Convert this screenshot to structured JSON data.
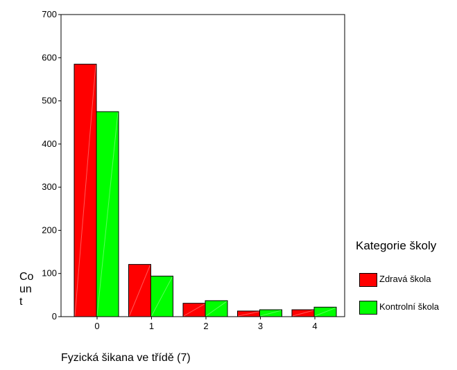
{
  "chart_data": {
    "type": "bar",
    "xlabel": "Fyzická šikana ve třídě (7)",
    "ylabel_lines": [
      "Co",
      "un",
      "t"
    ],
    "categories": [
      "0",
      "1",
      "2",
      "3",
      "4"
    ],
    "ylim": [
      0,
      700
    ],
    "yticks": [
      "0",
      "100",
      "200",
      "300",
      "400",
      "500",
      "600",
      "700"
    ],
    "legend_title": "Kategorie školy",
    "legend_position": "right",
    "grid": false,
    "series": [
      {
        "name": "Zdravá škola",
        "color": "#ff0000",
        "values": [
          585,
          121,
          31,
          13,
          16
        ]
      },
      {
        "name": "Kontrolní škola",
        "color": "#00ff00",
        "values": [
          475,
          94,
          37,
          16,
          22
        ]
      }
    ]
  }
}
